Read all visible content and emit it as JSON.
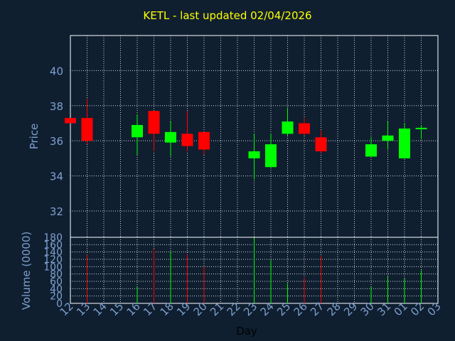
{
  "title": "KETL - last updated 02/04/2026",
  "colors": {
    "background": "#0f1f30",
    "title": "#ffff00",
    "axis_text": "#7f9fcf",
    "up": "#00ff00",
    "down": "#ff0000",
    "grid": "#ffffff"
  },
  "chart_data": [
    {
      "type": "candlestick",
      "ylabel": "Price",
      "ylim": [
        30.5,
        42
      ],
      "yticks": [
        32,
        34,
        36,
        38,
        40
      ],
      "grid": true,
      "x": [
        "12",
        "13",
        "14",
        "16",
        "17",
        "18",
        "19",
        "20",
        "23",
        "24",
        "25",
        "26",
        "27",
        "30",
        "31",
        "01",
        "02"
      ],
      "ohlc": [
        {
          "x": "12",
          "open": 37.3,
          "high": 37.3,
          "low": 37.0,
          "close": 37.0
        },
        {
          "x": "13",
          "open": 37.3,
          "high": 38.4,
          "low": 35.8,
          "close": 36.0
        },
        {
          "x": "16",
          "open": 36.2,
          "high": 37.5,
          "low": 35.2,
          "close": 36.9
        },
        {
          "x": "17",
          "open": 37.7,
          "high": 37.7,
          "low": 35.4,
          "close": 36.4
        },
        {
          "x": "18",
          "open": 35.9,
          "high": 37.1,
          "low": 35.1,
          "close": 36.5
        },
        {
          "x": "19",
          "open": 36.4,
          "high": 37.7,
          "low": 35.4,
          "close": 35.7
        },
        {
          "x": "20",
          "open": 36.5,
          "high": 36.5,
          "low": 35.2,
          "close": 35.5
        },
        {
          "x": "23",
          "open": 35.0,
          "high": 36.4,
          "low": 33.8,
          "close": 35.4
        },
        {
          "x": "24",
          "open": 34.5,
          "high": 36.4,
          "low": 34.5,
          "close": 35.8
        },
        {
          "x": "25",
          "open": 36.4,
          "high": 37.9,
          "low": 36.3,
          "close": 37.1
        },
        {
          "x": "26",
          "open": 37.0,
          "high": 37.3,
          "low": 36.3,
          "close": 36.4
        },
        {
          "x": "27",
          "open": 36.2,
          "high": 36.6,
          "low": 35.3,
          "close": 35.4
        },
        {
          "x": "30",
          "open": 35.1,
          "high": 36.2,
          "low": 35.1,
          "close": 35.8
        },
        {
          "x": "31",
          "open": 36.0,
          "high": 37.1,
          "low": 35.5,
          "close": 36.3
        },
        {
          "x": "01",
          "open": 35.0,
          "high": 37.0,
          "low": 35.0,
          "close": 36.7
        },
        {
          "x": "02",
          "open": 36.7,
          "high": 36.9,
          "low": 36.1,
          "close": 36.7
        }
      ]
    },
    {
      "type": "bar",
      "ylabel": "Volume (0000)",
      "xlabel": "Day",
      "ylim": [
        0,
        180
      ],
      "yticks": [
        0,
        20,
        40,
        60,
        80,
        100,
        120,
        140,
        160,
        180
      ],
      "grid": true,
      "categories": [
        "12",
        "13",
        "14",
        "15",
        "16",
        "17",
        "18",
        "19",
        "20",
        "21",
        "22",
        "23",
        "24",
        "25",
        "26",
        "27",
        "28",
        "29",
        "30",
        "31",
        "01",
        "02",
        "03"
      ],
      "bars": [
        {
          "x": "13",
          "value": 133,
          "direction": "down"
        },
        {
          "x": "16",
          "value": 45,
          "direction": "up"
        },
        {
          "x": "17",
          "value": 148,
          "direction": "down"
        },
        {
          "x": "18",
          "value": 142,
          "direction": "up"
        },
        {
          "x": "19",
          "value": 133,
          "direction": "down"
        },
        {
          "x": "20",
          "value": 100,
          "direction": "down"
        },
        {
          "x": "23",
          "value": 178,
          "direction": "up"
        },
        {
          "x": "24",
          "value": 118,
          "direction": "up"
        },
        {
          "x": "25",
          "value": 55,
          "direction": "up"
        },
        {
          "x": "26",
          "value": 70,
          "direction": "down"
        },
        {
          "x": "27",
          "value": 130,
          "direction": "down"
        },
        {
          "x": "30",
          "value": 45,
          "direction": "up"
        },
        {
          "x": "31",
          "value": 73,
          "direction": "up"
        },
        {
          "x": "01",
          "value": 68,
          "direction": "up"
        },
        {
          "x": "02",
          "value": 90,
          "direction": "up"
        }
      ]
    }
  ]
}
